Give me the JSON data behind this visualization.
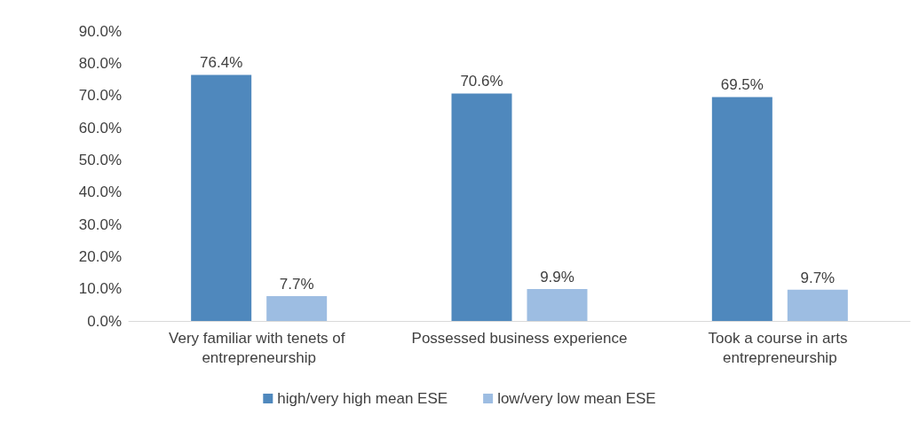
{
  "chart_data": {
    "type": "bar",
    "categories": [
      "Very familiar with tenets of entrepreneurship",
      "Possessed business experience",
      "Took a course in arts entrepreneurship"
    ],
    "series": [
      {
        "name": "high/very high mean ESE",
        "color": "#4f88bd",
        "values": [
          76.4,
          70.6,
          69.5
        ],
        "value_labels": [
          "76.4%",
          "70.6%",
          "69.5%"
        ]
      },
      {
        "name": "low/very low mean ESE",
        "color": "#9dbde2",
        "values": [
          7.7,
          9.9,
          9.7
        ],
        "value_labels": [
          "7.7%",
          "9.9%",
          "9.7%"
        ]
      }
    ],
    "ylim": [
      0,
      90
    ],
    "yticks": [
      {
        "value": 0,
        "label": "0.0%"
      },
      {
        "value": 10,
        "label": "10.0%"
      },
      {
        "value": 20,
        "label": "20.0%"
      },
      {
        "value": 30,
        "label": "30.0%"
      },
      {
        "value": 40,
        "label": "40.0%"
      },
      {
        "value": 50,
        "label": "50.0%"
      },
      {
        "value": 60,
        "label": "60.0%"
      },
      {
        "value": 70,
        "label": "70.0%"
      },
      {
        "value": 80,
        "label": "80.0%"
      },
      {
        "value": 90,
        "label": "90.0%"
      }
    ],
    "grid": false,
    "legend": "bottom"
  }
}
